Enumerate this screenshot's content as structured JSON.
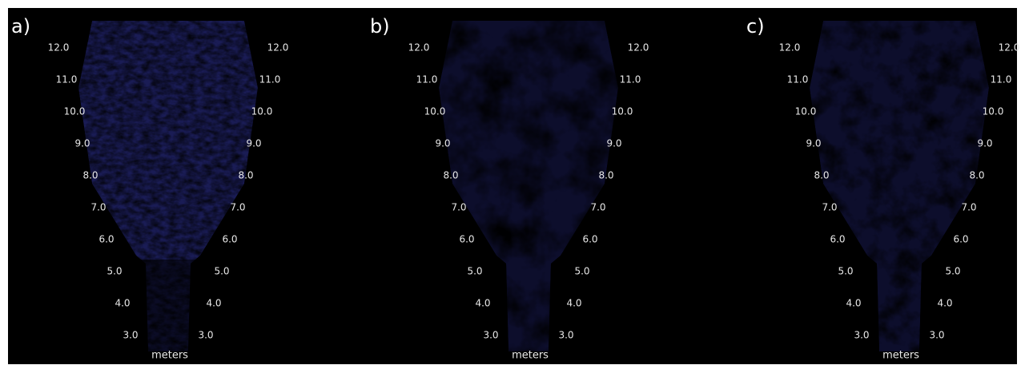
{
  "panels": [
    {
      "label": "a)",
      "range_labels": [
        "12.0",
        "11.0",
        "10.0",
        "9.0",
        "8.0",
        "7.0",
        "6.0",
        "5.0",
        "4.0",
        "3.0"
      ],
      "unit": "meters"
    },
    {
      "label": "b)",
      "range_labels": [
        "12.0",
        "11.0",
        "10.0",
        "9.0",
        "8.0",
        "7.0",
        "6.0",
        "5.0",
        "4.0",
        "3.0"
      ],
      "unit": "meters"
    },
    {
      "label": "c)",
      "range_labels": [
        "12.0",
        "11.0",
        "10.0",
        "9.0",
        "8.0",
        "7.0",
        "6.0",
        "5.0",
        "4.0",
        "3.0"
      ],
      "unit": "meters"
    }
  ]
}
